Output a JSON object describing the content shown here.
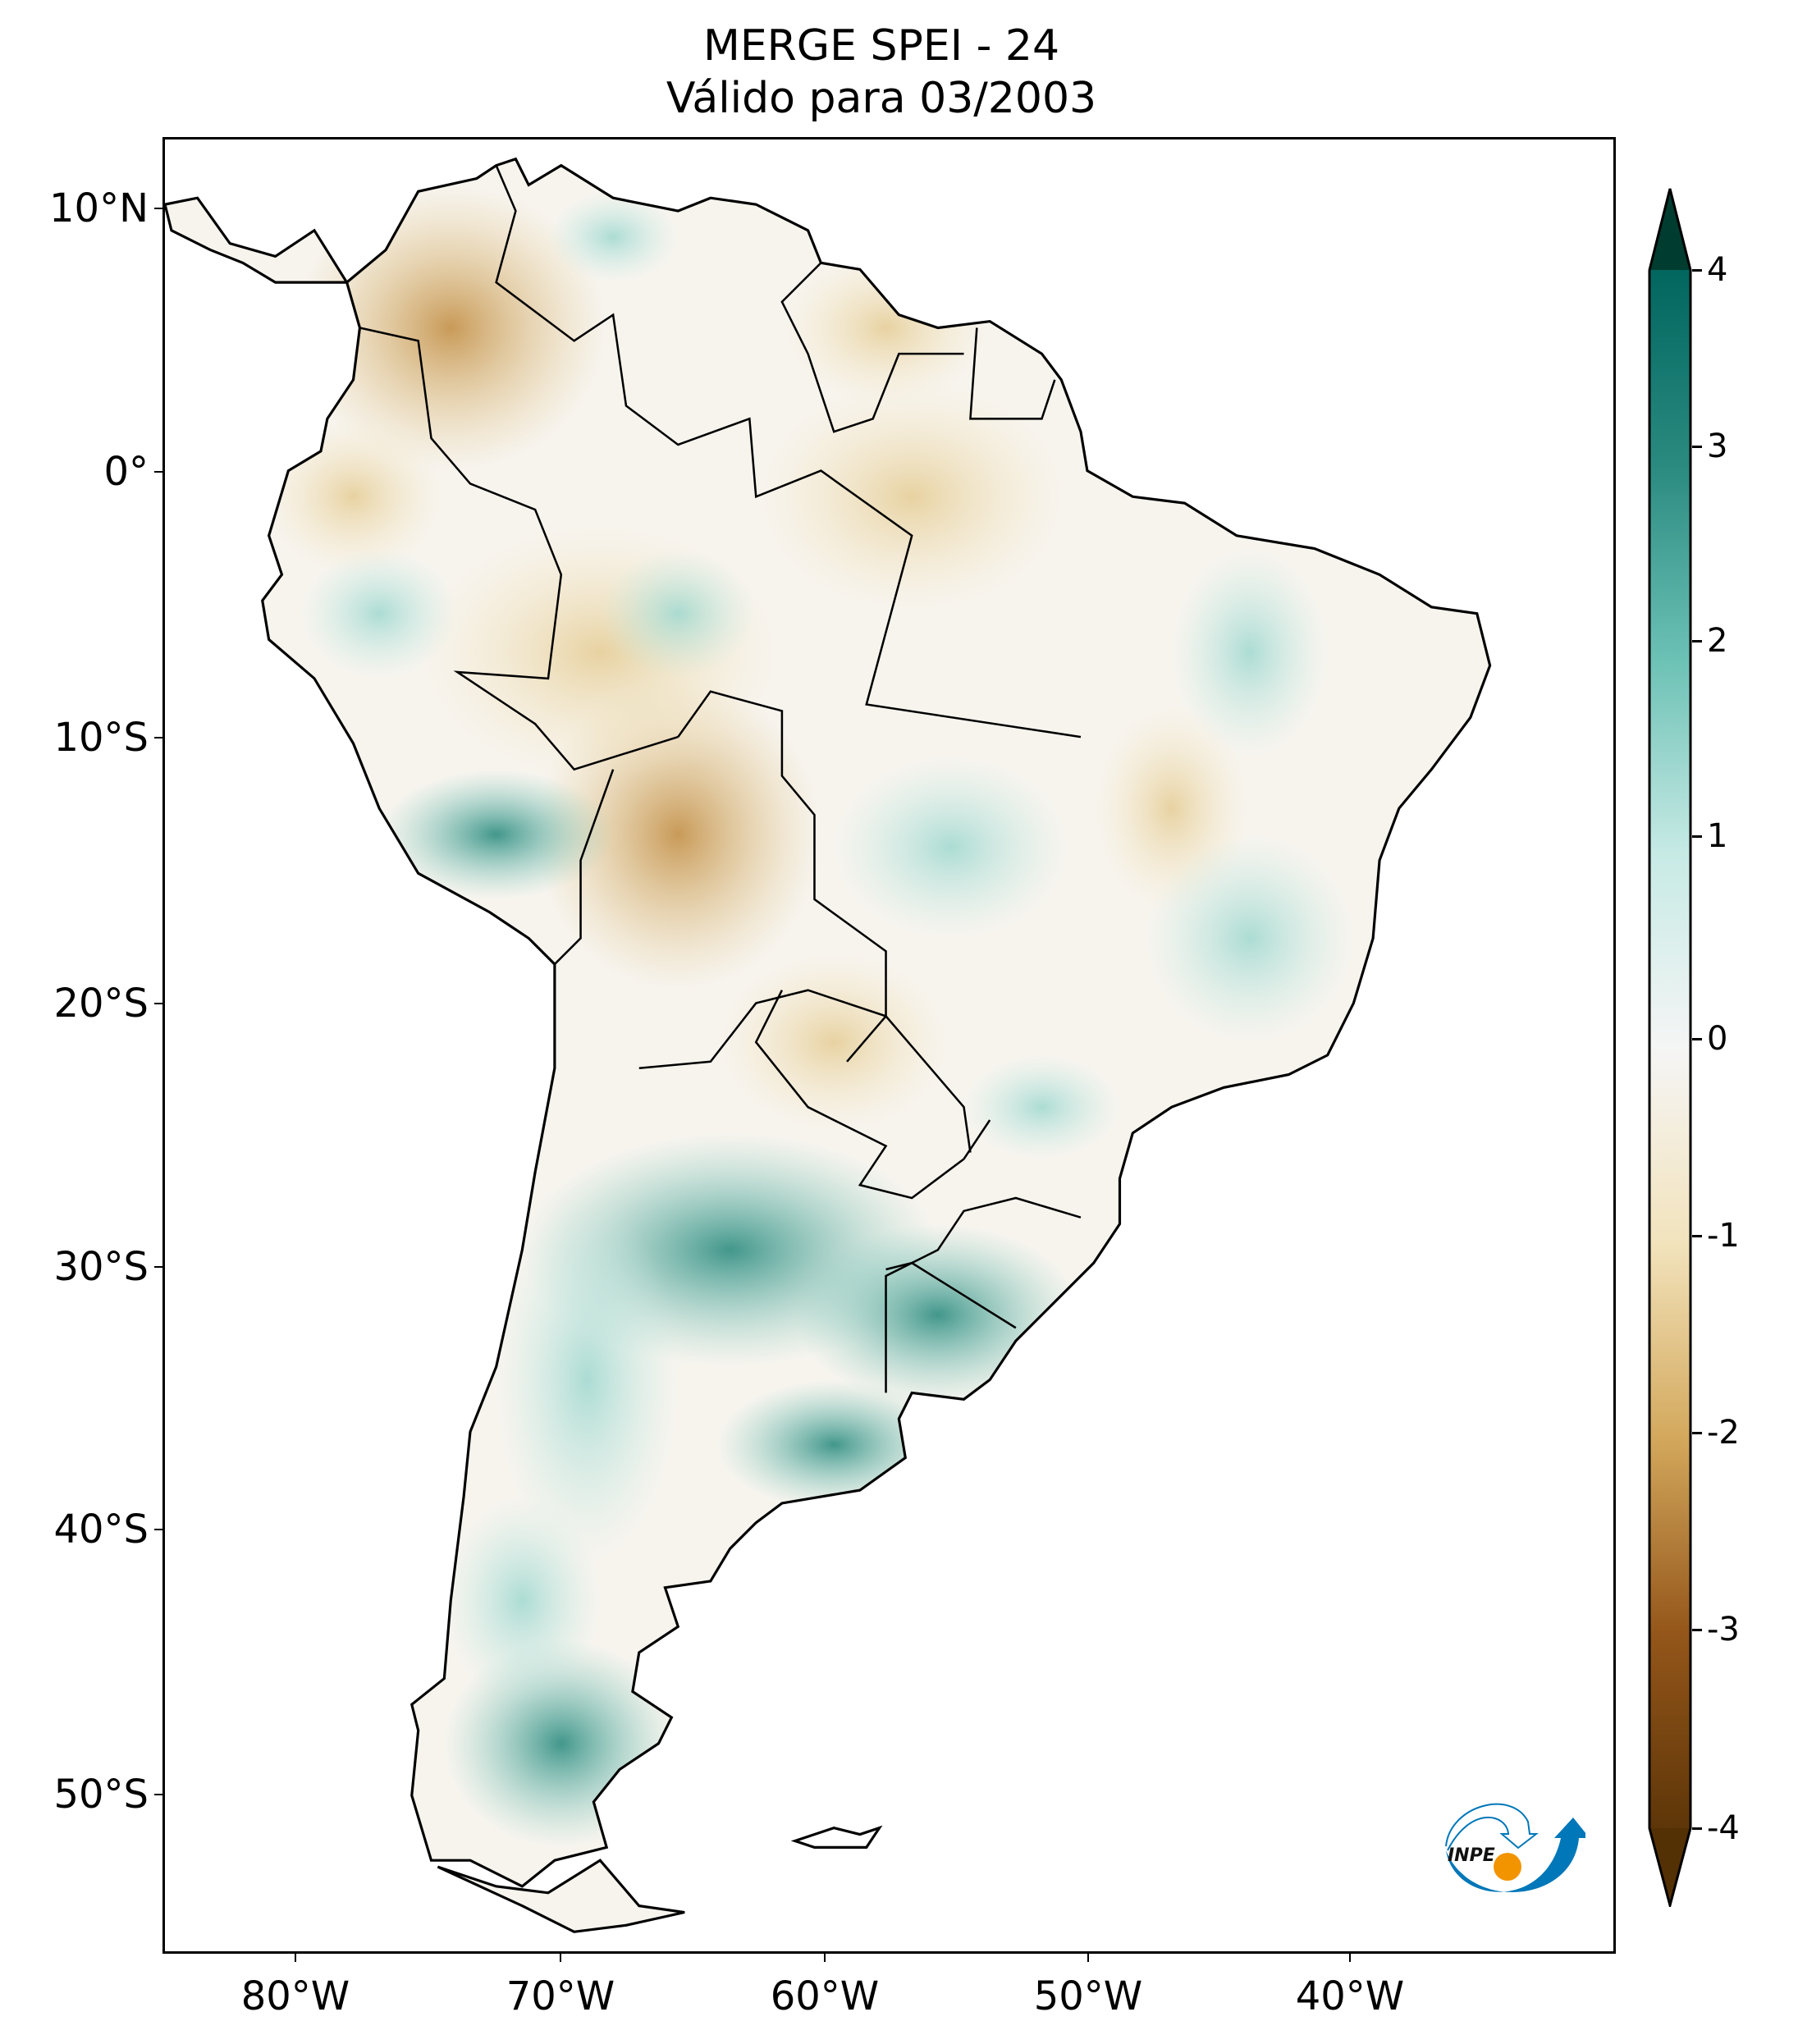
{
  "title": {
    "line1": "MERGE   SPEI - 24",
    "line2": "Válido para 03/2003"
  },
  "map": {
    "projection": "plate-carree",
    "extent_lon": [
      -85,
      -30
    ],
    "extent_lat": [
      -56,
      12.7
    ],
    "lat_ticks": [
      "10°N",
      "0°",
      "10°S",
      "20°S",
      "30°S",
      "40°S",
      "50°S"
    ],
    "lon_ticks": [
      "80°W",
      "70°W",
      "60°W",
      "50°W",
      "40°W"
    ],
    "variable": "SPEI-24"
  },
  "colorbar": {
    "ticks": [
      "4",
      "3",
      "2",
      "1",
      "0",
      "-1",
      "-2",
      "-3",
      "-4"
    ],
    "range": [
      -4,
      4
    ],
    "extend": "both",
    "colormap": "BrBG",
    "colors": [
      "#543005",
      "#8c510a",
      "#bf812d",
      "#dfc27d",
      "#f6e8c3",
      "#f5f5f5",
      "#c7eae5",
      "#80cdc1",
      "#35978f",
      "#01665e",
      "#003c30"
    ]
  },
  "logo": {
    "text": "INPE",
    "blue": "#0077b8",
    "orange": "#f29400"
  }
}
